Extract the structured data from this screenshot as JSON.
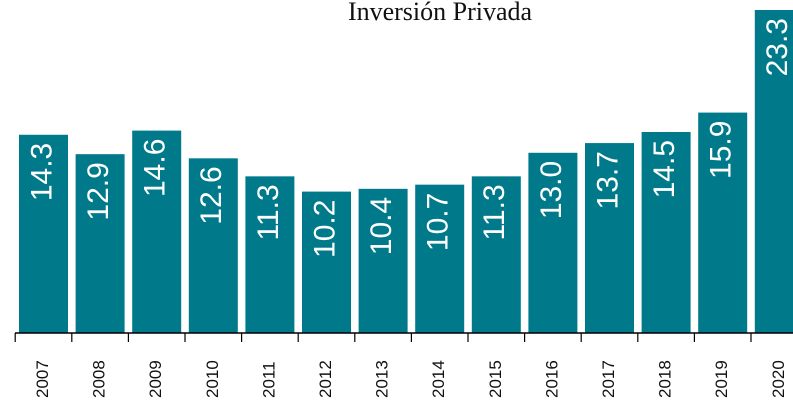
{
  "chart_data": {
    "type": "bar",
    "title": "Inversión Privada",
    "categories": [
      "2007",
      "2008",
      "2009",
      "2010",
      "2011",
      "2012",
      "2013",
      "2014",
      "2015",
      "2016",
      "2017",
      "2018",
      "2019",
      "2020"
    ],
    "values": [
      14.3,
      12.9,
      14.6,
      12.6,
      11.3,
      10.2,
      10.4,
      10.7,
      11.3,
      13.0,
      13.7,
      14.5,
      15.9,
      23.3
    ],
    "value_labels": [
      "14.3",
      "12.9",
      "14.6",
      "12.6",
      "11.3",
      "10.2",
      "10.4",
      "10.7",
      "11.3",
      "13.0",
      "13.7",
      "14.5",
      "15.9",
      "23.3"
    ],
    "color": "#007a8a"
  }
}
